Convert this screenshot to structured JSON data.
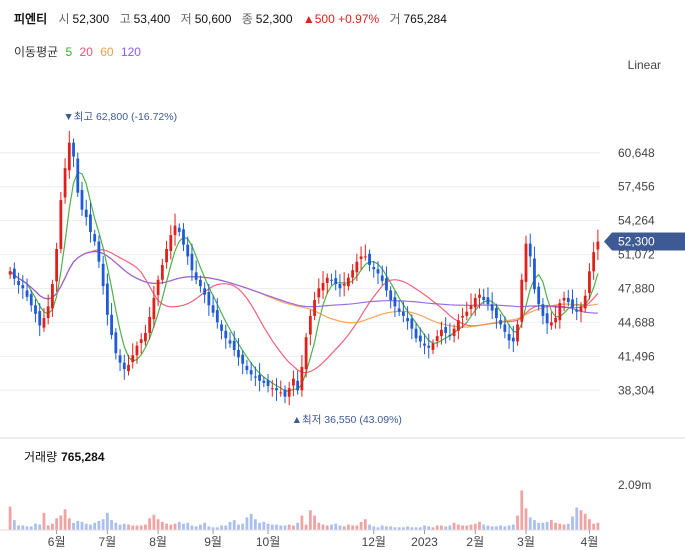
{
  "header": {
    "name": "피엔티",
    "open_label": "시",
    "open": "52,300",
    "high_label": "고",
    "high": "53,400",
    "low_label": "저",
    "low": "50,600",
    "close_label": "종",
    "close": "52,300",
    "change": "▲500 +0.97%",
    "volume_label": "거",
    "volume": "765,284"
  },
  "ma_legend": {
    "label": "이동평균",
    "periods": [
      {
        "text": "5",
        "color": "#3aaa35"
      },
      {
        "text": "20",
        "color": "#f0506e"
      },
      {
        "text": "60",
        "color": "#f39c4a"
      },
      {
        "text": "120",
        "color": "#8e5ce8"
      }
    ]
  },
  "scale_label": "Linear",
  "volume_panel": {
    "label": "거래량",
    "value": "765,284",
    "axis_tick": "2.09m"
  },
  "colors": {
    "up": "#e0211b",
    "down": "#1f5bd6",
    "price_tag": "#3d5a94",
    "grid": "#eeeeee"
  },
  "chart_data": {
    "type": "candlestick",
    "price_axis_ticks": [
      38304,
      41496,
      44688,
      47880,
      51072,
      54264,
      57456,
      60648
    ],
    "price_axis_labels": [
      "38,304",
      "41,496",
      "44,688",
      "47,880",
      "51,072",
      "54,264",
      "57,456",
      "60,648"
    ],
    "ylim": [
      34000,
      67500
    ],
    "x_labels": [
      "6월",
      "7월",
      "8월",
      "9월",
      "10월",
      "12월",
      "2023",
      "2월",
      "3월",
      "4월"
    ],
    "x_label_index": [
      11,
      23,
      35,
      48,
      61,
      86,
      98,
      110,
      122,
      137
    ],
    "last_price_label": "52,300",
    "last_price": 52300,
    "high_annotation": {
      "text": "최고 62,800 (-16.72%)",
      "value": 62800,
      "index": 14
    },
    "low_annotation": {
      "text": "최저 36,550 (43.09%)",
      "value": 36550,
      "index": 68
    },
    "closes": [
      49500,
      48800,
      48200,
      47900,
      47100,
      46300,
      45500,
      44400,
      45100,
      46200,
      48300,
      51600,
      56200,
      59200,
      61600,
      60300,
      56900,
      55300,
      54600,
      53200,
      52300,
      50400,
      48100,
      45400,
      43500,
      41800,
      40900,
      40300,
      40700,
      41600,
      42500,
      43100,
      43700,
      45200,
      47000,
      48700,
      50100,
      51600,
      52900,
      53800,
      53200,
      52000,
      50900,
      49600,
      48700,
      48100,
      47300,
      46300,
      45600,
      44700,
      43900,
      43200,
      42700,
      42100,
      41400,
      40800,
      40200,
      39800,
      39500,
      39200,
      39000,
      38700,
      38500,
      38300,
      38100,
      37700,
      38500,
      39400,
      38300,
      40500,
      43300,
      45300,
      46800,
      47900,
      48400,
      48900,
      48600,
      48300,
      47900,
      48300,
      48900,
      49600,
      50400,
      50900,
      50900,
      50100,
      49700,
      49300,
      48600,
      47700,
      46800,
      46200,
      45700,
      45300,
      44800,
      44100,
      43200,
      42900,
      42500,
      42300,
      42700,
      43400,
      44000,
      43700,
      43400,
      44100,
      44900,
      45300,
      45700,
      46300,
      47000,
      47300,
      46800,
      46400,
      45800,
      45100,
      44500,
      43800,
      43000,
      42900,
      44500,
      48700,
      52100,
      50900,
      47800,
      46400,
      45300,
      44600,
      44700,
      45100,
      46500,
      47000,
      46600,
      46100,
      45700,
      46200,
      47200,
      49500,
      51300,
      52300
    ],
    "volumes_normalized": [
      0.26,
      0.11,
      0.05,
      0.05,
      0.04,
      0.04,
      0.07,
      0.06,
      0.19,
      0.05,
      0.07,
      0.13,
      0.16,
      0.23,
      0.13,
      0.08,
      0.1,
      0.09,
      0.07,
      0.06,
      0.08,
      0.1,
      0.12,
      0.19,
      0.11,
      0.08,
      0.06,
      0.07,
      0.06,
      0.05,
      0.05,
      0.05,
      0.06,
      0.13,
      0.17,
      0.12,
      0.09,
      0.07,
      0.06,
      0.07,
      0.09,
      0.07,
      0.08,
      0.05,
      0.04,
      0.06,
      0.08,
      0.04,
      0.03,
      0.03,
      0.05,
      0.05,
      0.09,
      0.11,
      0.06,
      0.07,
      0.14,
      0.18,
      0.12,
      0.08,
      0.09,
      0.07,
      0.06,
      0.06,
      0.05,
      0.05,
      0.06,
      0.05,
      0.08,
      0.16,
      0.06,
      0.22,
      0.16,
      0.08,
      0.06,
      0.05,
      0.06,
      0.07,
      0.05,
      0.04,
      0.06,
      0.05,
      0.05,
      0.09,
      0.12,
      0.06,
      0.04,
      0.03,
      0.05,
      0.04,
      0.04,
      0.03,
      0.03,
      0.03,
      0.04,
      0.03,
      0.03,
      0.03,
      0.05,
      0.04,
      0.03,
      0.05,
      0.05,
      0.04,
      0.05,
      0.08,
      0.06,
      0.05,
      0.05,
      0.06,
      0.07,
      0.09,
      0.06,
      0.05,
      0.04,
      0.04,
      0.05,
      0.04,
      0.05,
      0.06,
      0.16,
      0.44,
      0.24,
      0.14,
      0.11,
      0.08,
      0.08,
      0.09,
      0.11,
      0.08,
      0.07,
      0.06,
      0.07,
      0.15,
      0.25,
      0.22,
      0.18,
      0.12,
      0.07,
      0.08
    ],
    "volume_ylim": [
      0,
      1.0
    ]
  }
}
